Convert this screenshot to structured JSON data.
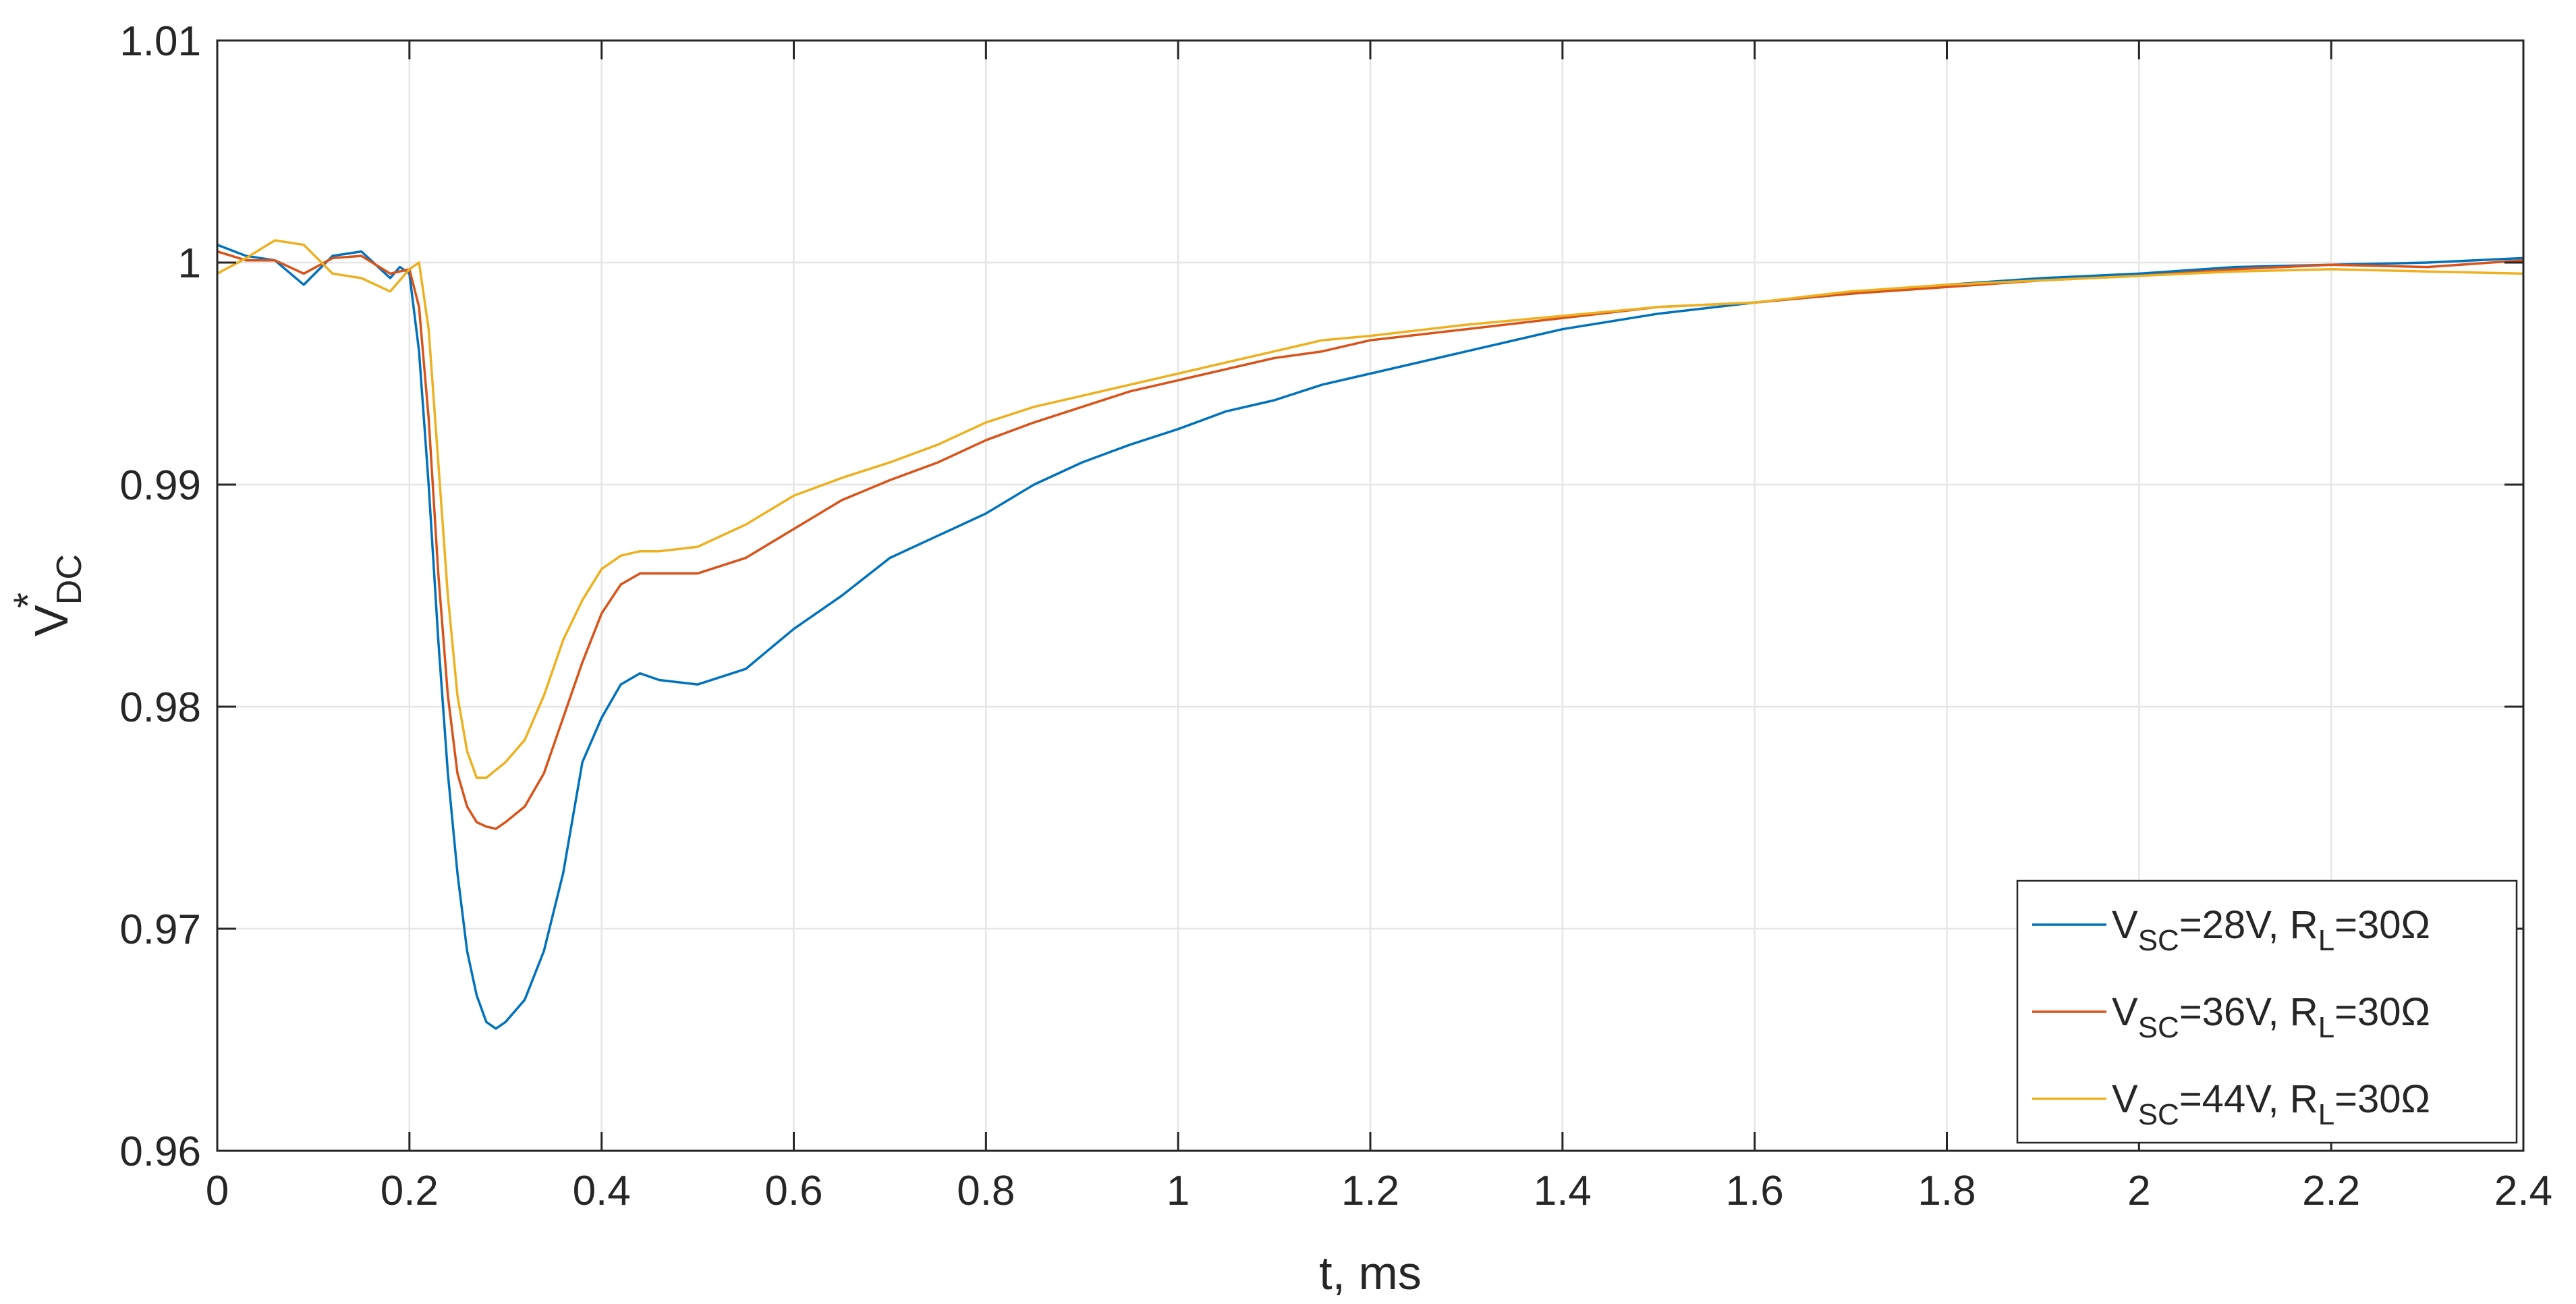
{
  "chart_data": {
    "type": "line",
    "xlabel": "t, ms",
    "ylabel": {
      "base": "V",
      "sub": "DC",
      "sup": "*"
    },
    "xlim": [
      0,
      2.4
    ],
    "ylim": [
      0.96,
      1.01
    ],
    "xticks": [
      "0",
      "0.2",
      "0.4",
      "0.6",
      "0.8",
      "1",
      "1.2",
      "1.4",
      "1.6",
      "1.8",
      "2",
      "2.2",
      "2.4"
    ],
    "yticks": [
      "0.96",
      "0.97",
      "0.98",
      "0.99",
      "1",
      "1.01"
    ],
    "grid": true,
    "legend_position": "bottom-right",
    "series": [
      {
        "name": "VSC=28V, RL=30Ω",
        "legend": {
          "v": "V",
          "vsub": "SC",
          "vrest": "=28V, R",
          "rsub": "L",
          "rrest": "=30Ω"
        },
        "color": "#0072BD",
        "points": [
          [
            0,
            1.0008
          ],
          [
            0.03,
            1.0003
          ],
          [
            0.06,
            1.0001
          ],
          [
            0.09,
            0.999
          ],
          [
            0.12,
            1.0003
          ],
          [
            0.15,
            1.0005
          ],
          [
            0.18,
            0.9993
          ],
          [
            0.19,
            0.9998
          ],
          [
            0.2,
            0.9995
          ],
          [
            0.21,
            0.996
          ],
          [
            0.22,
            0.99
          ],
          [
            0.23,
            0.983
          ],
          [
            0.24,
            0.977
          ],
          [
            0.25,
            0.9725
          ],
          [
            0.26,
            0.969
          ],
          [
            0.27,
            0.967
          ],
          [
            0.28,
            0.9658
          ],
          [
            0.29,
            0.9655
          ],
          [
            0.3,
            0.9658
          ],
          [
            0.32,
            0.9668
          ],
          [
            0.34,
            0.969
          ],
          [
            0.36,
            0.9725
          ],
          [
            0.38,
            0.9775
          ],
          [
            0.4,
            0.9795
          ],
          [
            0.42,
            0.981
          ],
          [
            0.44,
            0.9815
          ],
          [
            0.46,
            0.9812
          ],
          [
            0.5,
            0.981
          ],
          [
            0.55,
            0.9817
          ],
          [
            0.6,
            0.9835
          ],
          [
            0.65,
            0.985
          ],
          [
            0.7,
            0.9867
          ],
          [
            0.75,
            0.9877
          ],
          [
            0.8,
            0.9887
          ],
          [
            0.85,
            0.99
          ],
          [
            0.9,
            0.991
          ],
          [
            0.95,
            0.9918
          ],
          [
            1.0,
            0.9925
          ],
          [
            1.05,
            0.9933
          ],
          [
            1.1,
            0.9938
          ],
          [
            1.15,
            0.9945
          ],
          [
            1.2,
            0.995
          ],
          [
            1.3,
            0.996
          ],
          [
            1.4,
            0.997
          ],
          [
            1.5,
            0.9977
          ],
          [
            1.6,
            0.9982
          ],
          [
            1.7,
            0.9986
          ],
          [
            1.8,
            0.999
          ],
          [
            1.9,
            0.9993
          ],
          [
            2.0,
            0.9995
          ],
          [
            2.1,
            0.9998
          ],
          [
            2.2,
            0.9999
          ],
          [
            2.3,
            1.0
          ],
          [
            2.4,
            1.0002
          ]
        ]
      },
      {
        "name": "VSC=36V, RL=30Ω",
        "legend": {
          "v": "V",
          "vsub": "SC",
          "vrest": "=36V, R",
          "rsub": "L",
          "rrest": "=30Ω"
        },
        "color": "#D95319",
        "points": [
          [
            0,
            1.0005
          ],
          [
            0.03,
            1.0001
          ],
          [
            0.06,
            1.0001
          ],
          [
            0.09,
            0.9995
          ],
          [
            0.12,
            1.0002
          ],
          [
            0.15,
            1.0003
          ],
          [
            0.18,
            0.9995
          ],
          [
            0.2,
            0.9997
          ],
          [
            0.21,
            0.998
          ],
          [
            0.22,
            0.993
          ],
          [
            0.23,
            0.986
          ],
          [
            0.24,
            0.9805
          ],
          [
            0.25,
            0.977
          ],
          [
            0.26,
            0.9755
          ],
          [
            0.27,
            0.9748
          ],
          [
            0.28,
            0.9746
          ],
          [
            0.29,
            0.9745
          ],
          [
            0.3,
            0.9748
          ],
          [
            0.32,
            0.9755
          ],
          [
            0.34,
            0.977
          ],
          [
            0.36,
            0.9795
          ],
          [
            0.38,
            0.982
          ],
          [
            0.4,
            0.9842
          ],
          [
            0.42,
            0.9855
          ],
          [
            0.44,
            0.986
          ],
          [
            0.46,
            0.986
          ],
          [
            0.5,
            0.986
          ],
          [
            0.55,
            0.9867
          ],
          [
            0.6,
            0.988
          ],
          [
            0.65,
            0.9893
          ],
          [
            0.7,
            0.9902
          ],
          [
            0.75,
            0.991
          ],
          [
            0.8,
            0.992
          ],
          [
            0.85,
            0.9928
          ],
          [
            0.9,
            0.9935
          ],
          [
            0.95,
            0.9942
          ],
          [
            1.0,
            0.9947
          ],
          [
            1.05,
            0.9952
          ],
          [
            1.1,
            0.9957
          ],
          [
            1.15,
            0.996
          ],
          [
            1.2,
            0.9965
          ],
          [
            1.3,
            0.997
          ],
          [
            1.4,
            0.9975
          ],
          [
            1.5,
            0.998
          ],
          [
            1.6,
            0.9982
          ],
          [
            1.7,
            0.9986
          ],
          [
            1.8,
            0.9989
          ],
          [
            1.9,
            0.9992
          ],
          [
            2.0,
            0.9994
          ],
          [
            2.1,
            0.9997
          ],
          [
            2.2,
            0.9999
          ],
          [
            2.3,
            0.9998
          ],
          [
            2.4,
            1.0001
          ]
        ]
      },
      {
        "name": "VSC=44V, RL=30Ω",
        "legend": {
          "v": "V",
          "vsub": "SC",
          "vrest": "=44V, R",
          "rsub": "L",
          "rrest": "=30Ω"
        },
        "color": "#EDB120",
        "points": [
          [
            0,
            0.9995
          ],
          [
            0.03,
            1.0002
          ],
          [
            0.06,
            1.001
          ],
          [
            0.09,
            1.0008
          ],
          [
            0.12,
            0.9995
          ],
          [
            0.15,
            0.9993
          ],
          [
            0.18,
            0.9987
          ],
          [
            0.2,
            0.9997
          ],
          [
            0.21,
            1.0
          ],
          [
            0.22,
            0.997
          ],
          [
            0.23,
            0.991
          ],
          [
            0.24,
            0.985
          ],
          [
            0.25,
            0.9805
          ],
          [
            0.26,
            0.978
          ],
          [
            0.27,
            0.9768
          ],
          [
            0.28,
            0.9768
          ],
          [
            0.3,
            0.9775
          ],
          [
            0.32,
            0.9785
          ],
          [
            0.34,
            0.9805
          ],
          [
            0.36,
            0.983
          ],
          [
            0.38,
            0.9848
          ],
          [
            0.4,
            0.9862
          ],
          [
            0.42,
            0.9868
          ],
          [
            0.44,
            0.987
          ],
          [
            0.46,
            0.987
          ],
          [
            0.5,
            0.9872
          ],
          [
            0.55,
            0.9882
          ],
          [
            0.6,
            0.9895
          ],
          [
            0.65,
            0.9903
          ],
          [
            0.7,
            0.991
          ],
          [
            0.75,
            0.9918
          ],
          [
            0.8,
            0.9928
          ],
          [
            0.85,
            0.9935
          ],
          [
            0.9,
            0.994
          ],
          [
            0.95,
            0.9945
          ],
          [
            1.0,
            0.995
          ],
          [
            1.05,
            0.9955
          ],
          [
            1.1,
            0.996
          ],
          [
            1.15,
            0.9965
          ],
          [
            1.2,
            0.9967
          ],
          [
            1.3,
            0.9972
          ],
          [
            1.4,
            0.9976
          ],
          [
            1.5,
            0.998
          ],
          [
            1.6,
            0.9982
          ],
          [
            1.7,
            0.9987
          ],
          [
            1.8,
            0.999
          ],
          [
            1.9,
            0.9992
          ],
          [
            2.0,
            0.9994
          ],
          [
            2.1,
            0.9996
          ],
          [
            2.2,
            0.9997
          ],
          [
            2.3,
            0.9996
          ],
          [
            2.4,
            0.9995
          ]
        ]
      }
    ]
  }
}
